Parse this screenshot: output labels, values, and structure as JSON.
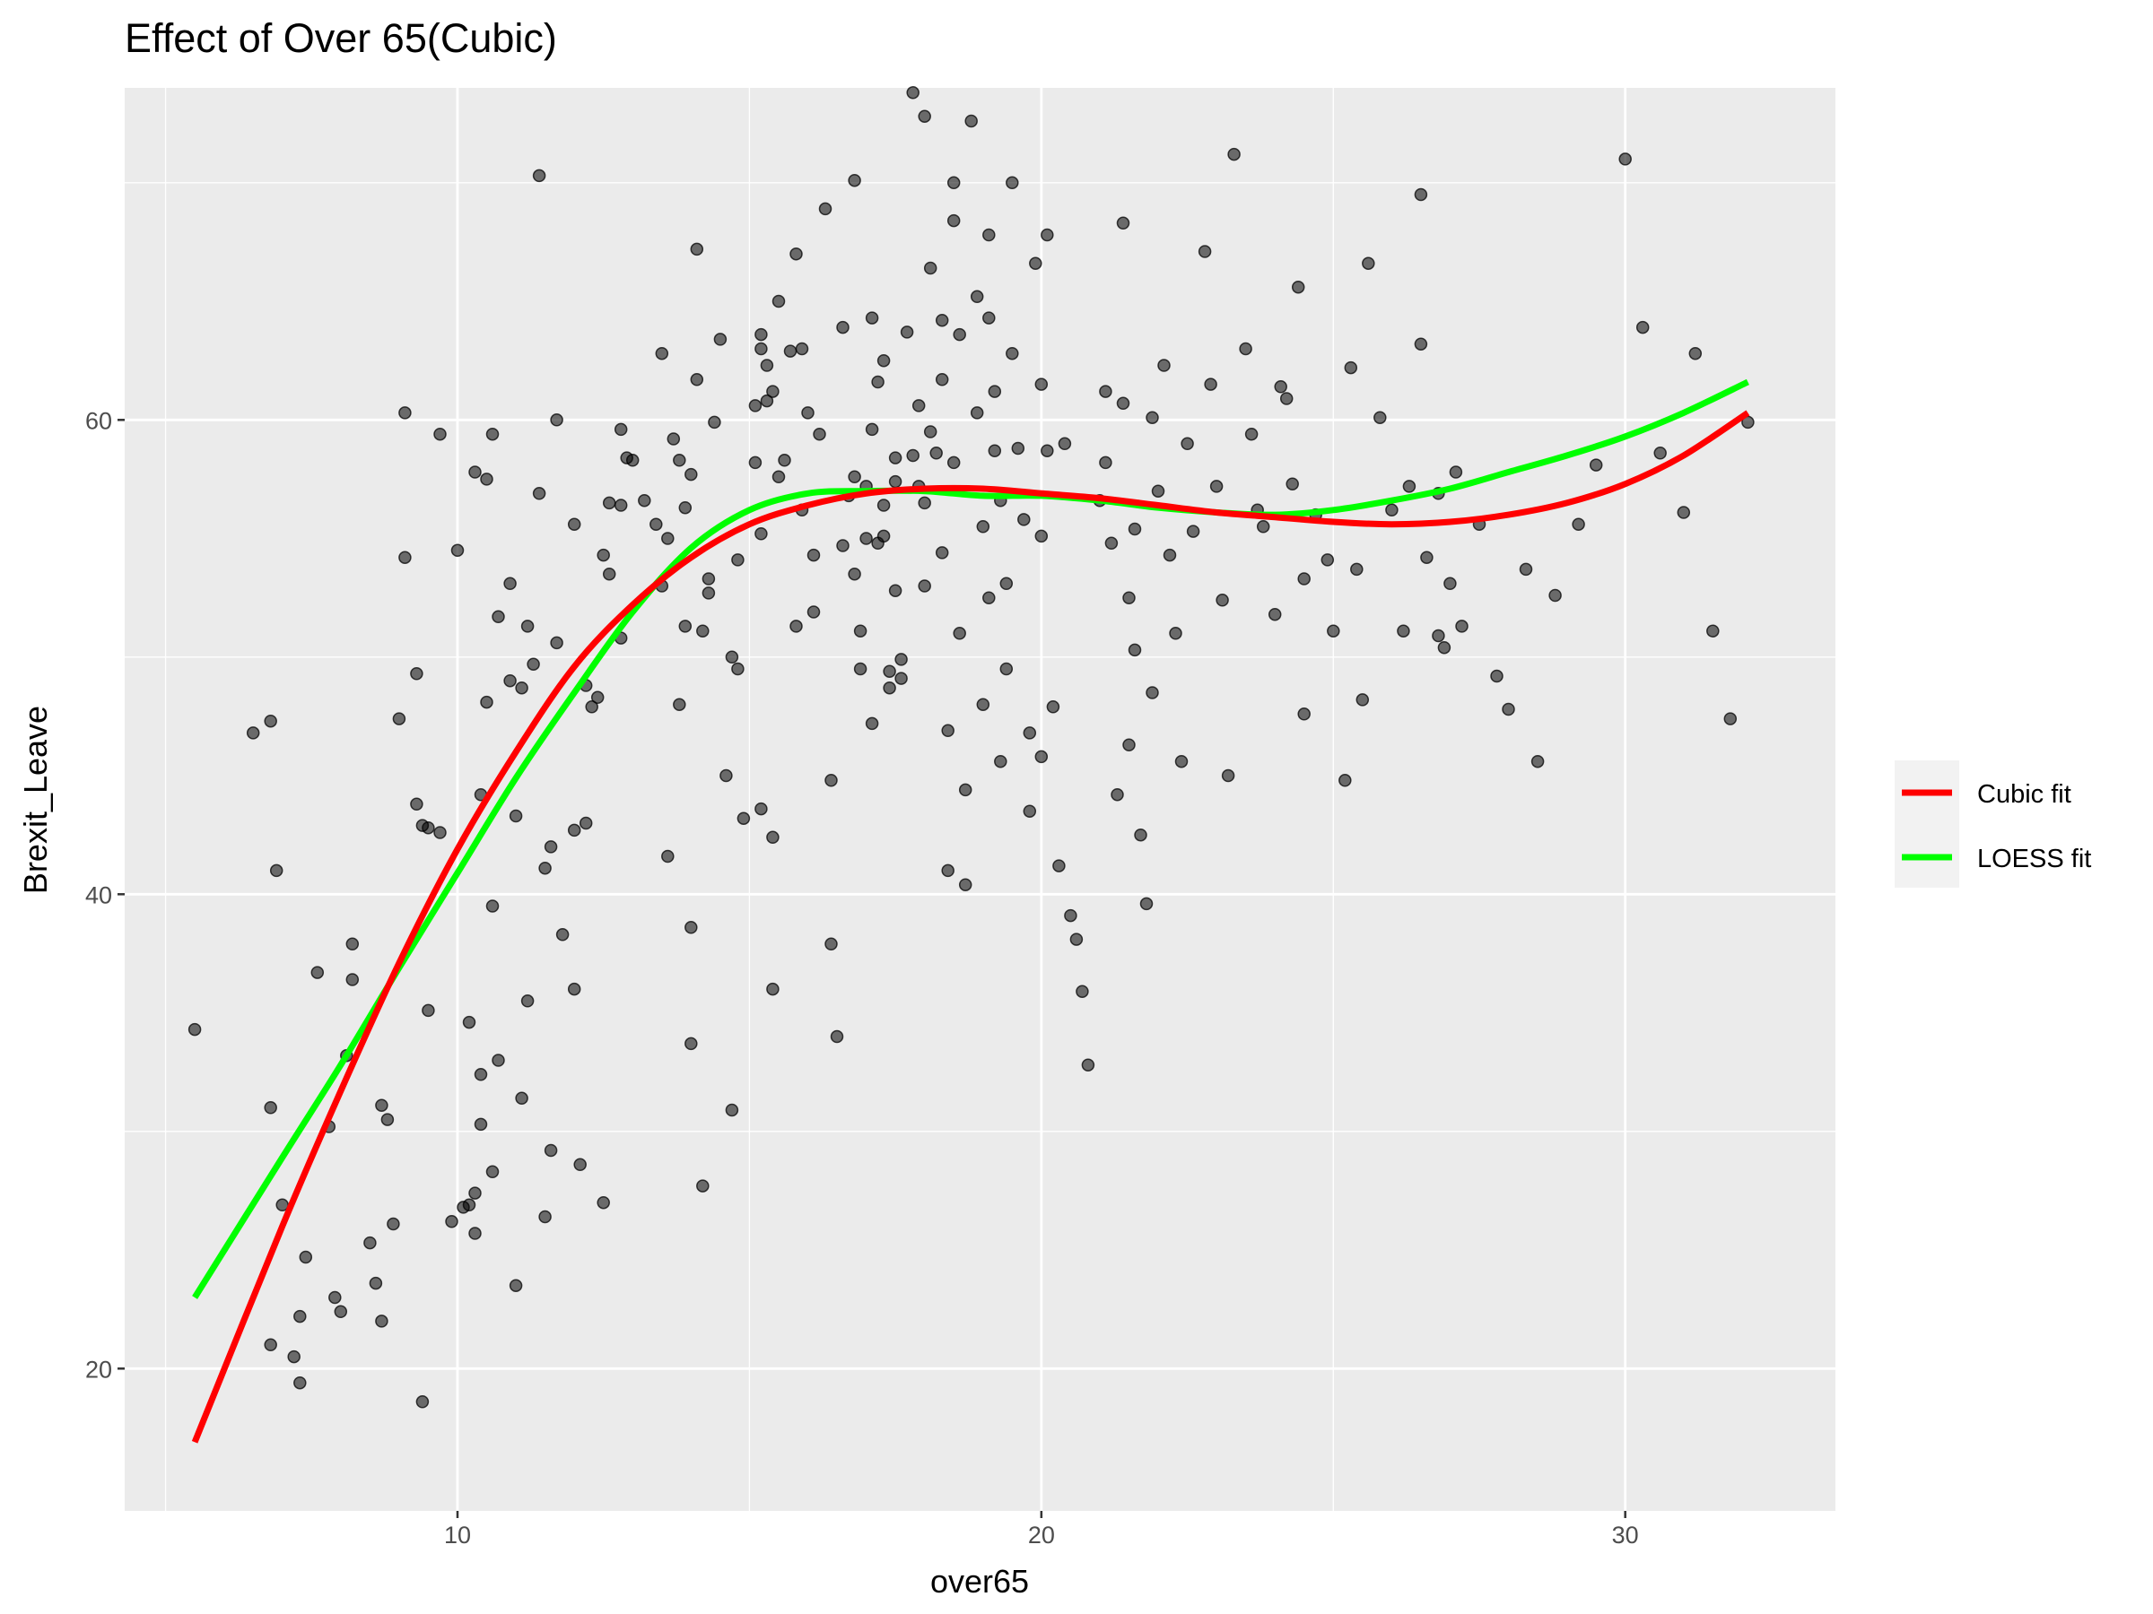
{
  "chart_data": {
    "type": "scatter",
    "title": "Effect of Over 65(Cubic)",
    "xlabel": "over65",
    "ylabel": "Brexit_Leave",
    "xlim": [
      4.3,
      33.6
    ],
    "ylim": [
      14.0,
      74.0
    ],
    "x_ticks": [
      10,
      20,
      30
    ],
    "y_ticks": [
      20,
      40,
      60
    ],
    "x_tick_labels": [
      "10",
      "20",
      "30"
    ],
    "y_tick_labels": [
      "20",
      "40",
      "60"
    ],
    "grid": true,
    "panel_background": "#ebebeb",
    "grid_color": "#ffffff",
    "point_color": "#000000",
    "point_opacity": 0.55,
    "legend_position": "right",
    "points": [
      [
        5.5,
        34.3
      ],
      [
        6.5,
        46.8
      ],
      [
        6.8,
        47.3
      ],
      [
        6.9,
        41.0
      ],
      [
        6.8,
        31.0
      ],
      [
        6.8,
        21.0
      ],
      [
        7.0,
        26.9
      ],
      [
        7.2,
        20.5
      ],
      [
        7.3,
        19.4
      ],
      [
        7.3,
        22.2
      ],
      [
        7.4,
        24.7
      ],
      [
        7.6,
        36.7
      ],
      [
        7.8,
        30.2
      ],
      [
        7.9,
        23.0
      ],
      [
        8.0,
        22.4
      ],
      [
        8.1,
        33.2
      ],
      [
        8.2,
        36.4
      ],
      [
        8.2,
        37.9
      ],
      [
        8.5,
        25.3
      ],
      [
        8.6,
        23.6
      ],
      [
        8.7,
        22.0
      ],
      [
        8.7,
        31.1
      ],
      [
        8.8,
        30.5
      ],
      [
        8.9,
        26.1
      ],
      [
        9.0,
        47.4
      ],
      [
        9.1,
        54.2
      ],
      [
        9.1,
        60.3
      ],
      [
        9.3,
        43.8
      ],
      [
        9.3,
        49.3
      ],
      [
        9.4,
        42.9
      ],
      [
        9.4,
        18.6
      ],
      [
        9.5,
        35.1
      ],
      [
        9.5,
        42.8
      ],
      [
        9.7,
        42.6
      ],
      [
        9.7,
        59.4
      ],
      [
        9.9,
        26.2
      ],
      [
        10.0,
        54.5
      ],
      [
        10.1,
        26.8
      ],
      [
        10.2,
        34.6
      ],
      [
        10.2,
        26.9
      ],
      [
        10.3,
        25.7
      ],
      [
        10.3,
        27.4
      ],
      [
        10.3,
        57.8
      ],
      [
        10.4,
        44.2
      ],
      [
        10.4,
        32.4
      ],
      [
        10.4,
        30.3
      ],
      [
        10.5,
        48.1
      ],
      [
        10.5,
        57.5
      ],
      [
        10.6,
        59.4
      ],
      [
        10.6,
        39.5
      ],
      [
        10.6,
        28.3
      ],
      [
        10.7,
        51.7
      ],
      [
        10.7,
        33.0
      ],
      [
        10.9,
        53.1
      ],
      [
        10.9,
        49.0
      ],
      [
        11.0,
        43.3
      ],
      [
        11.0,
        23.5
      ],
      [
        11.1,
        31.4
      ],
      [
        11.1,
        48.7
      ],
      [
        11.2,
        51.3
      ],
      [
        11.2,
        35.5
      ],
      [
        11.3,
        49.7
      ],
      [
        11.4,
        70.3
      ],
      [
        11.4,
        56.9
      ],
      [
        11.5,
        41.1
      ],
      [
        11.5,
        26.4
      ],
      [
        11.6,
        29.2
      ],
      [
        11.6,
        42.0
      ],
      [
        11.7,
        60.0
      ],
      [
        11.7,
        50.6
      ],
      [
        11.8,
        38.3
      ],
      [
        12.0,
        55.6
      ],
      [
        12.0,
        42.7
      ],
      [
        12.0,
        36.0
      ],
      [
        12.1,
        28.6
      ],
      [
        12.2,
        48.8
      ],
      [
        12.2,
        43.0
      ],
      [
        12.3,
        47.9
      ],
      [
        12.4,
        48.3
      ],
      [
        12.5,
        54.3
      ],
      [
        12.5,
        27.0
      ],
      [
        12.6,
        53.5
      ],
      [
        12.6,
        56.5
      ],
      [
        12.8,
        56.4
      ],
      [
        12.8,
        50.8
      ],
      [
        12.8,
        59.6
      ],
      [
        12.9,
        58.4
      ],
      [
        13.0,
        58.3
      ],
      [
        13.2,
        56.6
      ],
      [
        13.4,
        55.6
      ],
      [
        13.5,
        62.8
      ],
      [
        13.5,
        53.0
      ],
      [
        13.6,
        55.0
      ],
      [
        13.6,
        41.6
      ],
      [
        13.7,
        59.2
      ],
      [
        13.8,
        58.3
      ],
      [
        13.8,
        48.0
      ],
      [
        13.9,
        56.3
      ],
      [
        13.9,
        51.3
      ],
      [
        14.0,
        57.7
      ],
      [
        14.0,
        38.6
      ],
      [
        14.0,
        33.7
      ],
      [
        14.1,
        67.2
      ],
      [
        14.1,
        61.7
      ],
      [
        14.2,
        27.7
      ],
      [
        14.2,
        51.1
      ],
      [
        14.3,
        53.3
      ],
      [
        14.3,
        52.7
      ],
      [
        14.4,
        59.9
      ],
      [
        14.5,
        63.4
      ],
      [
        14.6,
        45.0
      ],
      [
        14.7,
        30.9
      ],
      [
        14.7,
        50.0
      ],
      [
        14.8,
        54.1
      ],
      [
        14.8,
        49.5
      ],
      [
        14.9,
        43.2
      ],
      [
        15.1,
        60.6
      ],
      [
        15.1,
        58.2
      ],
      [
        15.2,
        63.6
      ],
      [
        15.2,
        63.0
      ],
      [
        15.2,
        55.2
      ],
      [
        15.2,
        43.6
      ],
      [
        15.3,
        60.8
      ],
      [
        15.3,
        62.3
      ],
      [
        15.4,
        61.2
      ],
      [
        15.4,
        42.4
      ],
      [
        15.4,
        36.0
      ],
      [
        15.5,
        65.0
      ],
      [
        15.5,
        57.6
      ],
      [
        15.6,
        58.3
      ],
      [
        15.7,
        62.9
      ],
      [
        15.8,
        51.3
      ],
      [
        15.8,
        67.0
      ],
      [
        15.9,
        63.0
      ],
      [
        15.9,
        56.2
      ],
      [
        16.0,
        60.3
      ],
      [
        16.1,
        51.9
      ],
      [
        16.1,
        54.3
      ],
      [
        16.2,
        59.4
      ],
      [
        16.3,
        68.9
      ],
      [
        16.4,
        44.8
      ],
      [
        16.4,
        37.9
      ],
      [
        16.5,
        34.0
      ],
      [
        16.6,
        63.9
      ],
      [
        16.6,
        54.7
      ],
      [
        16.7,
        56.8
      ],
      [
        16.8,
        70.1
      ],
      [
        16.8,
        57.6
      ],
      [
        16.8,
        53.5
      ],
      [
        16.9,
        51.1
      ],
      [
        16.9,
        49.5
      ],
      [
        17.0,
        57.2
      ],
      [
        17.0,
        55.0
      ],
      [
        17.1,
        64.3
      ],
      [
        17.1,
        59.6
      ],
      [
        17.1,
        47.2
      ],
      [
        17.2,
        61.6
      ],
      [
        17.2,
        54.8
      ],
      [
        17.3,
        62.5
      ],
      [
        17.3,
        56.4
      ],
      [
        17.3,
        55.1
      ],
      [
        17.4,
        49.4
      ],
      [
        17.4,
        48.7
      ],
      [
        17.5,
        58.4
      ],
      [
        17.5,
        57.4
      ],
      [
        17.5,
        52.8
      ],
      [
        17.6,
        49.9
      ],
      [
        17.6,
        49.1
      ],
      [
        17.7,
        63.7
      ],
      [
        17.8,
        73.8
      ],
      [
        17.8,
        58.5
      ],
      [
        17.9,
        60.6
      ],
      [
        17.9,
        57.2
      ],
      [
        18.0,
        72.8
      ],
      [
        18.0,
        56.5
      ],
      [
        18.0,
        53.0
      ],
      [
        18.1,
        66.4
      ],
      [
        18.1,
        59.5
      ],
      [
        18.2,
        58.6
      ],
      [
        18.3,
        64.2
      ],
      [
        18.3,
        61.7
      ],
      [
        18.3,
        54.4
      ],
      [
        18.4,
        46.9
      ],
      [
        18.4,
        41.0
      ],
      [
        18.5,
        70.0
      ],
      [
        18.5,
        68.4
      ],
      [
        18.5,
        58.2
      ],
      [
        18.6,
        63.6
      ],
      [
        18.6,
        51.0
      ],
      [
        18.7,
        44.4
      ],
      [
        18.7,
        40.4
      ],
      [
        18.8,
        72.6
      ],
      [
        18.9,
        65.2
      ],
      [
        18.9,
        60.3
      ],
      [
        19.0,
        55.5
      ],
      [
        19.0,
        48.0
      ],
      [
        19.1,
        67.8
      ],
      [
        19.1,
        64.3
      ],
      [
        19.1,
        52.5
      ],
      [
        19.2,
        61.2
      ],
      [
        19.2,
        58.7
      ],
      [
        19.3,
        56.6
      ],
      [
        19.3,
        45.6
      ],
      [
        19.4,
        53.1
      ],
      [
        19.4,
        49.5
      ],
      [
        19.5,
        70.0
      ],
      [
        19.5,
        62.8
      ],
      [
        19.6,
        58.8
      ],
      [
        19.7,
        55.8
      ],
      [
        19.8,
        46.8
      ],
      [
        19.8,
        43.5
      ],
      [
        19.9,
        66.6
      ],
      [
        20.0,
        61.5
      ],
      [
        20.0,
        55.1
      ],
      [
        20.0,
        45.8
      ],
      [
        20.1,
        67.8
      ],
      [
        20.1,
        58.7
      ],
      [
        20.2,
        47.9
      ],
      [
        20.3,
        41.2
      ],
      [
        20.4,
        59.0
      ],
      [
        20.5,
        39.1
      ],
      [
        20.6,
        38.1
      ],
      [
        20.7,
        35.9
      ],
      [
        20.8,
        32.8
      ],
      [
        21.0,
        56.6
      ],
      [
        21.1,
        61.2
      ],
      [
        21.1,
        58.2
      ],
      [
        21.2,
        54.8
      ],
      [
        21.3,
        44.2
      ],
      [
        21.4,
        68.3
      ],
      [
        21.4,
        60.7
      ],
      [
        21.5,
        52.5
      ],
      [
        21.5,
        46.3
      ],
      [
        21.6,
        55.4
      ],
      [
        21.6,
        50.3
      ],
      [
        21.7,
        42.5
      ],
      [
        21.8,
        39.6
      ],
      [
        21.9,
        60.1
      ],
      [
        21.9,
        48.5
      ],
      [
        22.0,
        57.0
      ],
      [
        22.1,
        62.3
      ],
      [
        22.2,
        54.3
      ],
      [
        22.3,
        51.0
      ],
      [
        22.4,
        45.6
      ],
      [
        22.5,
        59.0
      ],
      [
        22.6,
        55.3
      ],
      [
        22.8,
        67.1
      ],
      [
        22.9,
        61.5
      ],
      [
        23.0,
        57.2
      ],
      [
        23.1,
        52.4
      ],
      [
        23.2,
        45.0
      ],
      [
        23.3,
        71.2
      ],
      [
        23.5,
        63.0
      ],
      [
        23.6,
        59.4
      ],
      [
        23.7,
        56.2
      ],
      [
        23.8,
        55.5
      ],
      [
        24.0,
        51.8
      ],
      [
        24.1,
        61.4
      ],
      [
        24.2,
        60.9
      ],
      [
        24.3,
        57.3
      ],
      [
        24.4,
        65.6
      ],
      [
        24.5,
        53.3
      ],
      [
        24.5,
        47.6
      ],
      [
        24.7,
        56.0
      ],
      [
        24.9,
        54.1
      ],
      [
        25.0,
        51.1
      ],
      [
        25.2,
        44.8
      ],
      [
        25.3,
        62.2
      ],
      [
        25.4,
        53.7
      ],
      [
        25.5,
        48.2
      ],
      [
        25.6,
        66.6
      ],
      [
        25.8,
        60.1
      ],
      [
        26.0,
        56.2
      ],
      [
        26.2,
        51.1
      ],
      [
        26.3,
        57.2
      ],
      [
        26.5,
        63.2
      ],
      [
        26.8,
        56.9
      ],
      [
        27.0,
        53.1
      ],
      [
        27.2,
        51.3
      ],
      [
        27.5,
        55.6
      ],
      [
        27.8,
        49.2
      ],
      [
        28.0,
        47.8
      ],
      [
        28.3,
        53.7
      ],
      [
        28.5,
        45.6
      ],
      [
        28.8,
        52.6
      ],
      [
        29.2,
        55.6
      ],
      [
        29.5,
        58.1
      ],
      [
        30.0,
        71.0
      ],
      [
        30.3,
        63.9
      ],
      [
        30.6,
        58.6
      ],
      [
        31.0,
        56.1
      ],
      [
        31.2,
        62.8
      ],
      [
        31.5,
        51.1
      ],
      [
        31.8,
        47.4
      ],
      [
        32.1,
        59.9
      ],
      [
        26.5,
        69.5
      ],
      [
        26.6,
        54.2
      ],
      [
        26.8,
        50.9
      ],
      [
        26.9,
        50.4
      ],
      [
        27.1,
        57.8
      ]
    ],
    "series": [
      {
        "name": "Cubic fit",
        "color": "#ff0000",
        "x": [
          5.5,
          7.0,
          8.0,
          9.0,
          10.0,
          11.0,
          12.0,
          13.0,
          14.0,
          15.0,
          16.0,
          17.0,
          18.0,
          19.0,
          20.0,
          21.0,
          22.0,
          23.0,
          24.0,
          25.0,
          26.0,
          27.0,
          28.0,
          29.0,
          30.0,
          31.0,
          32.1
        ],
        "y": [
          16.9,
          26.0,
          31.7,
          37.1,
          41.9,
          46.0,
          49.6,
          52.2,
          54.2,
          55.6,
          56.4,
          56.9,
          57.1,
          57.1,
          56.9,
          56.7,
          56.4,
          56.1,
          55.9,
          55.7,
          55.6,
          55.7,
          56.0,
          56.5,
          57.3,
          58.5,
          60.3
        ]
      },
      {
        "name": "LOESS fit",
        "color": "#00ff00",
        "x": [
          5.5,
          7.0,
          8.0,
          9.0,
          10.0,
          11.0,
          12.0,
          13.0,
          14.0,
          15.0,
          16.0,
          17.0,
          18.0,
          19.0,
          20.0,
          21.0,
          22.0,
          23.0,
          24.0,
          25.0,
          26.0,
          27.0,
          28.0,
          29.0,
          30.0,
          31.0,
          32.1
        ],
        "y": [
          23.0,
          28.9,
          32.8,
          36.9,
          40.9,
          44.9,
          48.5,
          51.9,
          54.6,
          56.2,
          56.9,
          57.0,
          57.0,
          56.8,
          56.8,
          56.6,
          56.3,
          56.1,
          56.0,
          56.2,
          56.6,
          57.1,
          57.8,
          58.5,
          59.3,
          60.3,
          61.6
        ]
      }
    ]
  }
}
